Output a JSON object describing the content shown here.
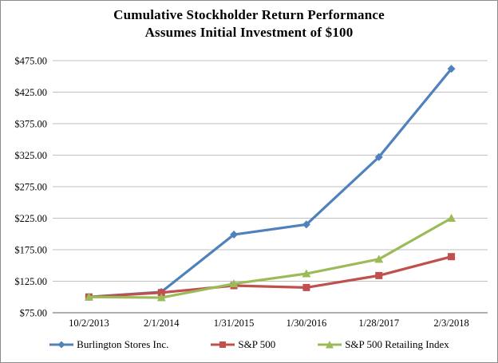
{
  "window": {
    "background_color": "#FFFFFF",
    "border_color": "#8C8C8C"
  },
  "chart_data": {
    "type": "line",
    "title": "Cumulative Stockholder Return Performance",
    "subtitle": "Assumes Initial Investment of $100",
    "categories": [
      "10/2/2013",
      "2/1/2014",
      "1/31/2015",
      "1/30/2016",
      "1/28/2017",
      "2/3/2018"
    ],
    "series": [
      {
        "name": "Burlington Stores Inc.",
        "color": "#4F81BD",
        "marker": "diamond",
        "values": [
          100,
          108,
          199,
          215,
          322,
          462
        ]
      },
      {
        "name": "S&P 500",
        "color": "#C0504D",
        "marker": "square",
        "values": [
          100,
          107,
          118,
          115,
          134,
          164
        ]
      },
      {
        "name": "S&P 500 Retailing Index",
        "color": "#9BBB59",
        "marker": "triangle",
        "values": [
          100,
          99,
          121,
          137,
          160,
          225
        ]
      }
    ],
    "y_axis": {
      "min": 75,
      "max": 475,
      "step": 50,
      "tick_labels": [
        "$75.00",
        "$125.00",
        "$175.00",
        "$225.00",
        "$275.00",
        "$325.00",
        "$375.00",
        "$425.00",
        "$475.00"
      ]
    },
    "grid": true,
    "legend_position": "bottom",
    "gridline_color": "#BFBFBF",
    "axis_line_color": "#808080"
  }
}
